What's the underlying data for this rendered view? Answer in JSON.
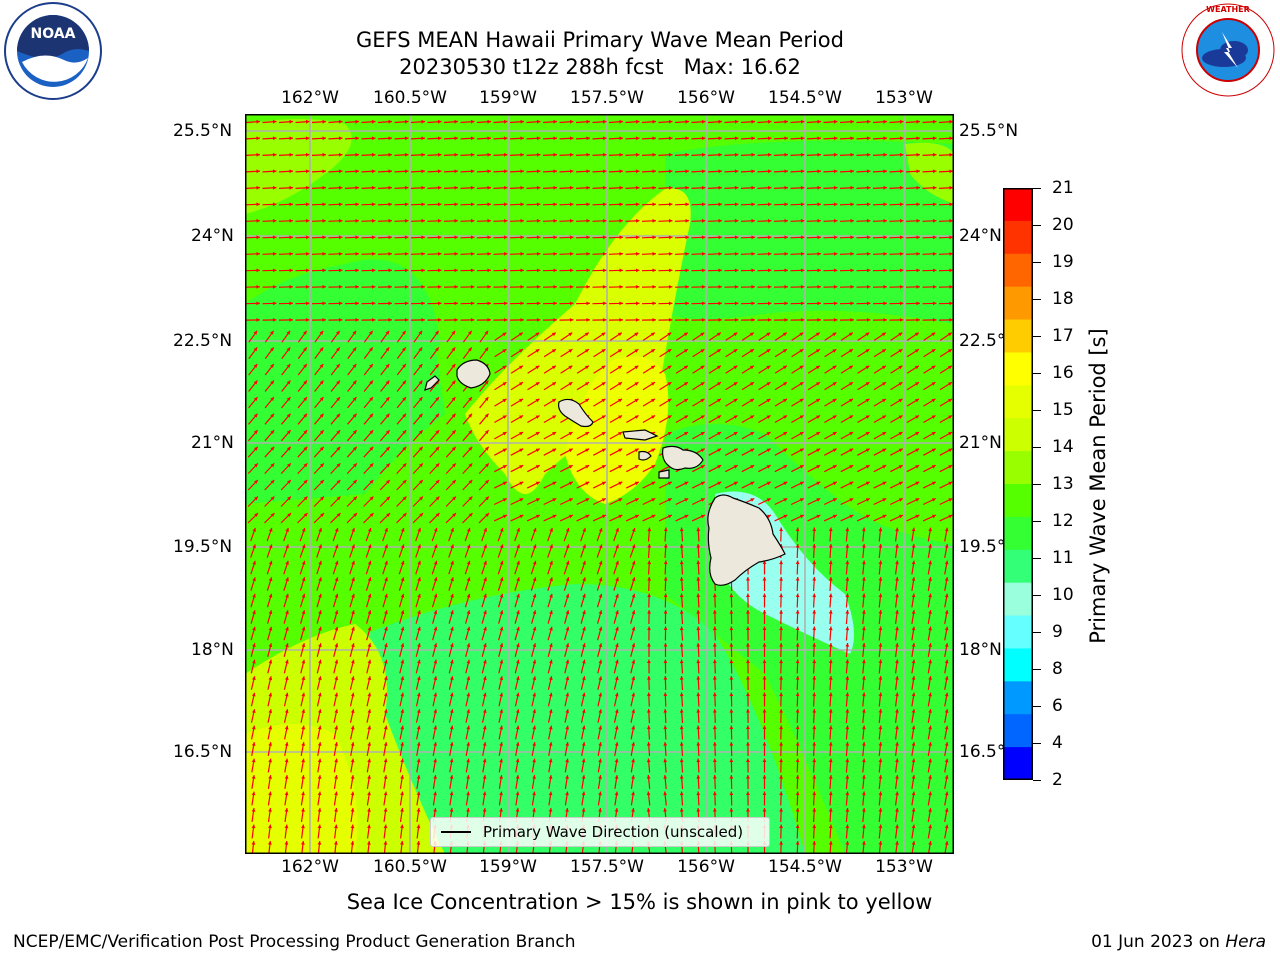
{
  "header": {
    "title_line1": "GEFS MEAN Hawaii Primary Wave Mean Period",
    "title_line2": "20230530 t12z 288h fcst   Max: 16.62"
  },
  "logos": {
    "noaa": {
      "text": "NOAA",
      "ring_text": "NATIONAL OCEANIC AND ATMOSPHERIC ADMINISTRATION · U.S. DEPARTMENT OF COMMERCE"
    },
    "nws": {
      "ring_text": "NATIONAL WEATHER SERVICE"
    }
  },
  "map": {
    "lon_labels": [
      "162°W",
      "160.5°W",
      "159°W",
      "157.5°W",
      "156°W",
      "154.5°W",
      "153°W"
    ],
    "lat_labels_left": [
      "25.5°N",
      "24°N",
      "22.5°N",
      "21°N",
      "19.5°N",
      "18°N",
      "16.5°N"
    ],
    "lat_labels_right": [
      "25.5°N",
      "24°N",
      "22.5°N",
      "21°N",
      "19.5°N",
      "18°N",
      "16.5°N"
    ],
    "legend_text": "Primary Wave Direction (unscaled)",
    "arrow_color": "#ff0000",
    "land_color": "#ece8dc",
    "grid_color": "#b0b0b0"
  },
  "colorbar": {
    "label": "Primary Wave Mean Period [s]",
    "ticks": [
      "21",
      "20",
      "19",
      "18",
      "17",
      "16",
      "15",
      "14",
      "13",
      "12",
      "11",
      "10",
      "9",
      "8",
      "6",
      "4",
      "2"
    ],
    "colors": [
      "#ff0000",
      "#ff3300",
      "#ff6600",
      "#ff9900",
      "#ffcc00",
      "#ffff00",
      "#e6ff00",
      "#ccff00",
      "#99ff00",
      "#55ff00",
      "#33ff33",
      "#33ff77",
      "#99ffdd",
      "#66ffff",
      "#00ffff",
      "#0099ff",
      "#0066ff",
      "#0000ff"
    ]
  },
  "note": "Sea Ice Concentration > 15% is shown in pink to yellow",
  "footer": {
    "left": "NCEP/EMC/Verification Post Processing Product Generation Branch",
    "date": "01 Jun 2023 on ",
    "machine": "Hera"
  }
}
